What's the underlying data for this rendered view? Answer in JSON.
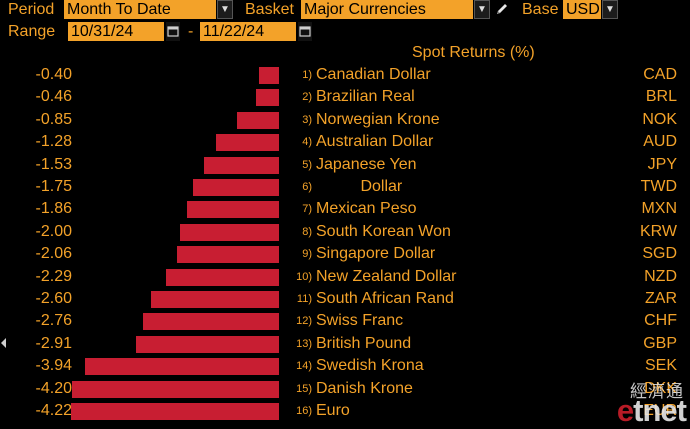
{
  "toolbar": {
    "period_label": "Period",
    "period_value": "Month To Date",
    "basket_label": "Basket",
    "basket_value": "Major Currencies",
    "base_label": "Base",
    "base_value": "USD",
    "range_label": "Range",
    "range_start": "10/31/24",
    "range_separator": "-",
    "range_end": "11/22/24"
  },
  "header": "Spot Returns (%)",
  "colors": {
    "accent": "#f3a229",
    "bar": "#c81e32",
    "background": "#000000"
  },
  "chart_data": {
    "type": "bar",
    "orientation": "horizontal",
    "title": "Spot Returns (%)",
    "categories": [
      "Canadian Dollar",
      "Brazilian Real",
      "Norwegian Krone",
      "Australian Dollar",
      "Japanese Yen",
      "Dollar",
      "Mexican Peso",
      "South Korean Won",
      "Singapore Dollar",
      "New Zealand Dollar",
      "South African Rand",
      "Swiss Franc",
      "British Pound",
      "Swedish Krona",
      "Danish Krone",
      "Euro"
    ],
    "values": [
      -0.4,
      -0.46,
      -0.85,
      -1.28,
      -1.53,
      -1.75,
      -1.86,
      -2.0,
      -2.06,
      -2.29,
      -2.6,
      -2.76,
      -2.91,
      -3.94,
      -4.2,
      -4.22
    ],
    "series": [
      {
        "name": "Spot Returns (%)",
        "values": [
          -0.4,
          -0.46,
          -0.85,
          -1.28,
          -1.53,
          -1.75,
          -1.86,
          -2.0,
          -2.06,
          -2.29,
          -2.6,
          -2.76,
          -2.91,
          -3.94,
          -4.2,
          -4.22
        ]
      }
    ],
    "rows": [
      {
        "value": "-0.40",
        "rank": "1)",
        "name": "Canadian Dollar",
        "code": "CAD"
      },
      {
        "value": "-0.46",
        "rank": "2)",
        "name": "Brazilian Real",
        "code": "BRL"
      },
      {
        "value": "-0.85",
        "rank": "3)",
        "name": "Norwegian Krone",
        "code": "NOK"
      },
      {
        "value": "-1.28",
        "rank": "4)",
        "name": "Australian Dollar",
        "code": "AUD"
      },
      {
        "value": "-1.53",
        "rank": "5)",
        "name": "Japanese Yen",
        "code": "JPY"
      },
      {
        "value": "-1.75",
        "rank": "6)",
        "name": "          Dollar",
        "code": "TWD"
      },
      {
        "value": "-1.86",
        "rank": "7)",
        "name": "Mexican Peso",
        "code": "MXN"
      },
      {
        "value": "-2.00",
        "rank": "8)",
        "name": "South Korean Won",
        "code": "KRW"
      },
      {
        "value": "-2.06",
        "rank": "9)",
        "name": "Singapore Dollar",
        "code": "SGD"
      },
      {
        "value": "-2.29",
        "rank": "10)",
        "name": "New Zealand Dollar",
        "code": "NZD"
      },
      {
        "value": "-2.60",
        "rank": "11)",
        "name": "South African Rand",
        "code": "ZAR"
      },
      {
        "value": "-2.76",
        "rank": "12)",
        "name": "Swiss Franc",
        "code": "CHF"
      },
      {
        "value": "-2.91",
        "rank": "13)",
        "name": "British Pound",
        "code": "GBP"
      },
      {
        "value": "-3.94",
        "rank": "14)",
        "name": "Swedish Krona",
        "code": "SEK"
      },
      {
        "value": "-4.20",
        "rank": "15)",
        "name": "Danish Krone",
        "code": "DKK"
      },
      {
        "value": "-4.22",
        "rank": "16)",
        "name": "Euro",
        "code": "EUR"
      }
    ]
  },
  "icons": {
    "dropdown": "chevron-down-icon",
    "edit": "pencil-icon",
    "calendar": "calendar-icon",
    "scroll_left": "arrow-left-icon"
  },
  "watermark": {
    "cn": "經濟通",
    "brand_e": "e",
    "brand_rest": "tnet"
  }
}
